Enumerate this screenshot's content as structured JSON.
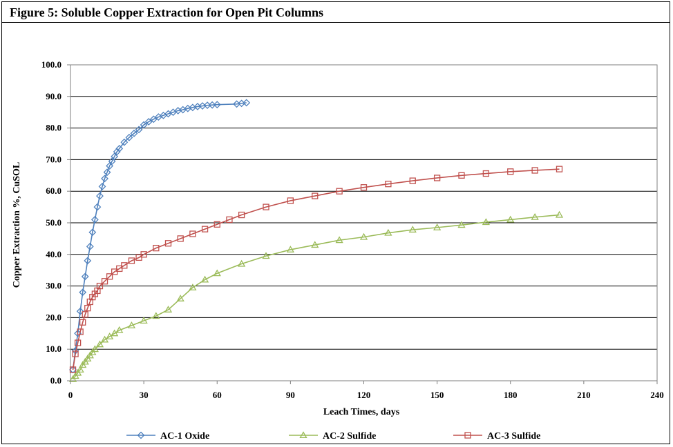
{
  "figure_title": "Figure 5: Soluble Copper Extraction for Open Pit Columns",
  "chart_data": {
    "type": "line",
    "xlabel": "Leach Times, days",
    "ylabel": "Copper Extraction %, CuSOL",
    "xlim": [
      0,
      240
    ],
    "ylim": [
      0,
      100
    ],
    "xticks": [
      0,
      30,
      60,
      90,
      120,
      150,
      180,
      210,
      240
    ],
    "yticks": [
      0,
      10,
      20,
      30,
      40,
      50,
      60,
      70,
      80,
      90,
      100
    ],
    "xtick_labels": [
      "0",
      "30",
      "60",
      "90",
      "120",
      "150",
      "180",
      "210",
      "240"
    ],
    "ytick_labels": [
      "0.0",
      "10.0",
      "20.0",
      "30.0",
      "40.0",
      "50.0",
      "60.0",
      "70.0",
      "80.0",
      "90.0",
      "100.0"
    ],
    "grid": "horizontal",
    "legend_position": "bottom",
    "series": [
      {
        "name": "AC-1 Oxide",
        "color": "#4f81bd",
        "marker": "diamond",
        "x": [
          1,
          2,
          3,
          4,
          5,
          6,
          7,
          8,
          9,
          10,
          11,
          12,
          13,
          14,
          15,
          16,
          17,
          18,
          19,
          20,
          22,
          24,
          26,
          28,
          30,
          32,
          34,
          36,
          38,
          40,
          42,
          44,
          46,
          48,
          50,
          52,
          54,
          56,
          58,
          60,
          68,
          70,
          72
        ],
        "y": [
          3.5,
          9.5,
          15,
          22,
          28,
          33,
          38,
          42.5,
          47,
          51,
          55,
          58.5,
          61.5,
          64,
          66,
          68,
          69.5,
          71,
          72.5,
          73.5,
          75.5,
          77,
          78.3,
          79.5,
          81,
          82,
          82.8,
          83.5,
          84,
          84.5,
          85,
          85.5,
          85.8,
          86.2,
          86.5,
          86.8,
          87,
          87.2,
          87.3,
          87.4,
          87.6,
          87.8,
          88
        ]
      },
      {
        "name": "AC-2 Sulfide",
        "color": "#9bbb59",
        "marker": "triangle",
        "x": [
          1,
          2,
          3,
          4,
          5,
          6,
          7,
          8,
          9,
          10,
          12,
          14,
          16,
          18,
          20,
          25,
          30,
          35,
          40,
          45,
          50,
          55,
          60,
          70,
          80,
          90,
          100,
          110,
          120,
          130,
          140,
          150,
          160,
          170,
          180,
          190,
          200
        ],
        "y": [
          0.5,
          1.5,
          2.5,
          3.5,
          5,
          6,
          7,
          8,
          9,
          10,
          11.5,
          13,
          14,
          15,
          16,
          17.5,
          19,
          20.5,
          22.5,
          26,
          29.5,
          32,
          34,
          37,
          39.5,
          41.5,
          43,
          44.5,
          45.5,
          46.8,
          47.8,
          48.5,
          49.3,
          50.2,
          51,
          51.8,
          52.5
        ]
      },
      {
        "name": "AC-3 Sulfide",
        "color": "#c0504d",
        "marker": "square",
        "x": [
          1,
          2,
          3,
          4,
          5,
          6,
          7,
          8,
          9,
          10,
          11,
          12,
          14,
          16,
          18,
          20,
          22,
          25,
          28,
          30,
          35,
          40,
          45,
          50,
          55,
          60,
          65,
          70,
          80,
          90,
          100,
          110,
          120,
          130,
          140,
          150,
          160,
          170,
          180,
          190,
          200
        ],
        "y": [
          3.5,
          8.5,
          12,
          15.5,
          18.5,
          21,
          23,
          25,
          26.5,
          27.5,
          28.5,
          30,
          31.5,
          33,
          34.5,
          35.5,
          36.5,
          38,
          39,
          40,
          42,
          43.5,
          45,
          46.5,
          48,
          49.5,
          51,
          52.5,
          55,
          57,
          58.5,
          60,
          61.2,
          62.3,
          63.3,
          64.2,
          65,
          65.6,
          66.2,
          66.6,
          67
        ]
      }
    ]
  }
}
